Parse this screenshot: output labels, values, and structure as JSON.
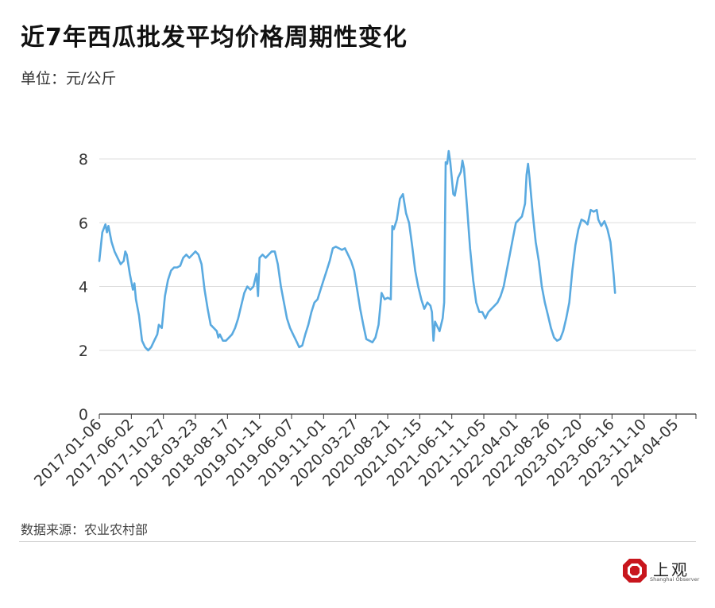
{
  "header": {
    "title": "近7年西瓜批发平均价格周期性变化",
    "unit": "单位：元/公斤"
  },
  "footer": {
    "source": "数据来源：农业农村部",
    "brand_name": "上观",
    "brand_sub": "Shanghai Observer"
  },
  "colors": {
    "line": "#5AAAE0",
    "grid": "#dddddd",
    "brand": "#C8161D"
  },
  "chart_data": {
    "type": "line",
    "title": "近7年西瓜批发平均价格周期性变化",
    "ylabel": "单位：元/公斤",
    "xlabel": "",
    "ylim": [
      0,
      8.5
    ],
    "yticks": [
      0,
      2,
      4,
      6,
      8
    ],
    "grid": true,
    "xlim": [
      "2017-01-06",
      "2024-07-05"
    ],
    "xtick_labels": [
      "2017-01-06",
      "2017-06-02",
      "2017-10-27",
      "2018-03-23",
      "2018-08-17",
      "2019-01-11",
      "2019-06-07",
      "2019-11-01",
      "2020-03-27",
      "2020-08-21",
      "2021-01-15",
      "2021-06-11",
      "2021-11-05",
      "2022-04-01",
      "2022-08-26",
      "2023-01-20",
      "2023-06-16",
      "2023-11-10",
      "2024-04-05"
    ],
    "series": [
      {
        "points": [
          [
            "2017-01-06",
            4.8
          ],
          [
            "2017-01-20",
            5.7
          ],
          [
            "2017-02-03",
            5.95
          ],
          [
            "2017-02-10",
            5.7
          ],
          [
            "2017-02-17",
            5.9
          ],
          [
            "2017-03-03",
            5.4
          ],
          [
            "2017-03-17",
            5.1
          ],
          [
            "2017-03-31",
            4.9
          ],
          [
            "2017-04-14",
            4.7
          ],
          [
            "2017-04-28",
            4.8
          ],
          [
            "2017-05-05",
            5.1
          ],
          [
            "2017-05-12",
            5.0
          ],
          [
            "2017-05-26",
            4.4
          ],
          [
            "2017-06-09",
            3.9
          ],
          [
            "2017-06-16",
            4.1
          ],
          [
            "2017-06-23",
            3.6
          ],
          [
            "2017-07-07",
            3.1
          ],
          [
            "2017-07-21",
            2.3
          ],
          [
            "2017-08-04",
            2.1
          ],
          [
            "2017-08-18",
            2.0
          ],
          [
            "2017-09-01",
            2.1
          ],
          [
            "2017-09-15",
            2.3
          ],
          [
            "2017-09-29",
            2.5
          ],
          [
            "2017-10-06",
            2.8
          ],
          [
            "2017-10-20",
            2.7
          ],
          [
            "2017-11-03",
            3.7
          ],
          [
            "2017-11-17",
            4.2
          ],
          [
            "2017-12-01",
            4.5
          ],
          [
            "2017-12-15",
            4.6
          ],
          [
            "2017-12-29",
            4.6
          ],
          [
            "2018-01-12",
            4.65
          ],
          [
            "2018-01-26",
            4.9
          ],
          [
            "2018-02-09",
            5.0
          ],
          [
            "2018-02-23",
            4.9
          ],
          [
            "2018-03-09",
            5.0
          ],
          [
            "2018-03-23",
            5.1
          ],
          [
            "2018-04-06",
            5.0
          ],
          [
            "2018-04-20",
            4.7
          ],
          [
            "2018-05-04",
            3.9
          ],
          [
            "2018-05-18",
            3.3
          ],
          [
            "2018-06-01",
            2.8
          ],
          [
            "2018-06-15",
            2.7
          ],
          [
            "2018-06-29",
            2.6
          ],
          [
            "2018-07-06",
            2.4
          ],
          [
            "2018-07-13",
            2.5
          ],
          [
            "2018-07-27",
            2.3
          ],
          [
            "2018-08-10",
            2.3
          ],
          [
            "2018-08-24",
            2.4
          ],
          [
            "2018-09-07",
            2.5
          ],
          [
            "2018-09-21",
            2.7
          ],
          [
            "2018-10-05",
            3.0
          ],
          [
            "2018-10-19",
            3.4
          ],
          [
            "2018-11-02",
            3.8
          ],
          [
            "2018-11-16",
            4.0
          ],
          [
            "2018-11-30",
            3.9
          ],
          [
            "2018-12-14",
            4.0
          ],
          [
            "2018-12-28",
            4.4
          ],
          [
            "2019-01-04",
            3.7
          ],
          [
            "2019-01-11",
            4.9
          ],
          [
            "2019-01-25",
            5.0
          ],
          [
            "2019-02-08",
            4.9
          ],
          [
            "2019-02-22",
            5.0
          ],
          [
            "2019-03-08",
            5.1
          ],
          [
            "2019-03-22",
            5.1
          ],
          [
            "2019-04-05",
            4.7
          ],
          [
            "2019-04-19",
            4.0
          ],
          [
            "2019-05-03",
            3.5
          ],
          [
            "2019-05-17",
            3.0
          ],
          [
            "2019-05-31",
            2.7
          ],
          [
            "2019-06-14",
            2.5
          ],
          [
            "2019-06-28",
            2.3
          ],
          [
            "2019-07-12",
            2.1
          ],
          [
            "2019-07-26",
            2.15
          ],
          [
            "2019-08-09",
            2.5
          ],
          [
            "2019-08-23",
            2.8
          ],
          [
            "2019-09-06",
            3.2
          ],
          [
            "2019-09-20",
            3.5
          ],
          [
            "2019-10-04",
            3.6
          ],
          [
            "2019-10-18",
            3.9
          ],
          [
            "2019-11-01",
            4.2
          ],
          [
            "2019-11-15",
            4.5
          ],
          [
            "2019-11-29",
            4.8
          ],
          [
            "2019-12-13",
            5.2
          ],
          [
            "2019-12-27",
            5.25
          ],
          [
            "2020-01-10",
            5.2
          ],
          [
            "2020-01-24",
            5.15
          ],
          [
            "2020-02-07",
            5.2
          ],
          [
            "2020-02-21",
            5.0
          ],
          [
            "2020-03-06",
            4.8
          ],
          [
            "2020-03-20",
            4.5
          ],
          [
            "2020-04-03",
            3.9
          ],
          [
            "2020-04-17",
            3.3
          ],
          [
            "2020-05-01",
            2.8
          ],
          [
            "2020-05-15",
            2.35
          ],
          [
            "2020-05-29",
            2.3
          ],
          [
            "2020-06-12",
            2.25
          ],
          [
            "2020-06-26",
            2.4
          ],
          [
            "2020-07-10",
            2.8
          ],
          [
            "2020-07-24",
            3.8
          ],
          [
            "2020-08-07",
            3.6
          ],
          [
            "2020-08-21",
            3.65
          ],
          [
            "2020-09-04",
            3.6
          ],
          [
            "2020-09-11",
            5.9
          ],
          [
            "2020-09-18",
            5.8
          ],
          [
            "2020-10-02",
            6.1
          ],
          [
            "2020-10-16",
            6.75
          ],
          [
            "2020-10-30",
            6.9
          ],
          [
            "2020-11-13",
            6.3
          ],
          [
            "2020-11-27",
            6.0
          ],
          [
            "2020-12-11",
            5.3
          ],
          [
            "2020-12-25",
            4.5
          ],
          [
            "2021-01-08",
            4.0
          ],
          [
            "2021-01-22",
            3.6
          ],
          [
            "2021-02-05",
            3.3
          ],
          [
            "2021-02-19",
            3.5
          ],
          [
            "2021-03-05",
            3.4
          ],
          [
            "2021-03-12",
            3.2
          ],
          [
            "2021-03-19",
            2.3
          ],
          [
            "2021-03-26",
            2.9
          ],
          [
            "2021-04-02",
            2.8
          ],
          [
            "2021-04-16",
            2.6
          ],
          [
            "2021-04-30",
            3.0
          ],
          [
            "2021-05-07",
            3.5
          ],
          [
            "2021-05-14",
            7.9
          ],
          [
            "2021-05-21",
            7.85
          ],
          [
            "2021-05-28",
            8.25
          ],
          [
            "2021-06-04",
            7.9
          ],
          [
            "2021-06-18",
            6.9
          ],
          [
            "2021-06-25",
            6.85
          ],
          [
            "2021-07-09",
            7.4
          ],
          [
            "2021-07-23",
            7.6
          ],
          [
            "2021-07-30",
            7.95
          ],
          [
            "2021-08-06",
            7.7
          ],
          [
            "2021-08-20",
            6.5
          ],
          [
            "2021-09-03",
            5.2
          ],
          [
            "2021-09-17",
            4.2
          ],
          [
            "2021-10-01",
            3.5
          ],
          [
            "2021-10-15",
            3.2
          ],
          [
            "2021-10-29",
            3.2
          ],
          [
            "2021-11-12",
            3.0
          ],
          [
            "2021-11-26",
            3.2
          ],
          [
            "2021-12-10",
            3.3
          ],
          [
            "2021-12-24",
            3.4
          ],
          [
            "2022-01-07",
            3.5
          ],
          [
            "2022-01-21",
            3.7
          ],
          [
            "2022-02-04",
            4.0
          ],
          [
            "2022-02-18",
            4.5
          ],
          [
            "2022-03-04",
            5.0
          ],
          [
            "2022-03-18",
            5.5
          ],
          [
            "2022-04-01",
            6.0
          ],
          [
            "2022-04-15",
            6.1
          ],
          [
            "2022-04-29",
            6.2
          ],
          [
            "2022-05-13",
            6.6
          ],
          [
            "2022-05-20",
            7.5
          ],
          [
            "2022-05-27",
            7.85
          ],
          [
            "2022-06-03",
            7.4
          ],
          [
            "2022-06-17",
            6.3
          ],
          [
            "2022-07-01",
            5.4
          ],
          [
            "2022-07-15",
            4.8
          ],
          [
            "2022-07-29",
            4.0
          ],
          [
            "2022-08-12",
            3.5
          ],
          [
            "2022-08-26",
            3.1
          ],
          [
            "2022-09-09",
            2.7
          ],
          [
            "2022-09-23",
            2.4
          ],
          [
            "2022-10-07",
            2.3
          ],
          [
            "2022-10-21",
            2.35
          ],
          [
            "2022-11-04",
            2.6
          ],
          [
            "2022-11-18",
            3.0
          ],
          [
            "2022-12-02",
            3.5
          ],
          [
            "2022-12-16",
            4.5
          ],
          [
            "2022-12-30",
            5.3
          ],
          [
            "2023-01-13",
            5.8
          ],
          [
            "2023-01-27",
            6.1
          ],
          [
            "2023-02-10",
            6.05
          ],
          [
            "2023-02-24",
            5.95
          ],
          [
            "2023-03-10",
            6.4
          ],
          [
            "2023-03-24",
            6.35
          ],
          [
            "2023-04-07",
            6.4
          ],
          [
            "2023-04-14",
            6.1
          ],
          [
            "2023-04-28",
            5.9
          ],
          [
            "2023-05-12",
            6.05
          ],
          [
            "2023-05-26",
            5.8
          ],
          [
            "2023-06-09",
            5.4
          ],
          [
            "2023-06-23",
            4.4
          ],
          [
            "2023-06-30",
            3.8
          ]
        ]
      }
    ]
  }
}
